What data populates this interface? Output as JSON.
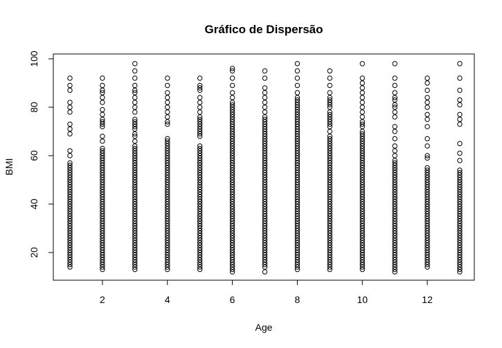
{
  "chart_data": {
    "type": "scatter",
    "title": "Gráfico de Dispersão",
    "xlabel": "Age",
    "ylabel": "BMI",
    "xlim": [
      0.5,
      13.5
    ],
    "ylim": [
      10,
      100
    ],
    "xticks": [
      2,
      4,
      6,
      8,
      10,
      12
    ],
    "yticks": [
      20,
      40,
      60,
      80,
      100
    ],
    "grid": false,
    "marker": "open-circle",
    "marker_color": "#000000",
    "series": [
      {
        "values_by_x": [
          {
            "x": 1,
            "y": [
              14,
              15,
              16,
              17,
              18,
              19,
              20,
              21,
              22,
              23,
              24,
              25,
              26,
              27,
              28,
              29,
              30,
              31,
              32,
              33,
              34,
              35,
              36,
              37,
              38,
              39,
              40,
              41,
              42,
              43,
              44,
              45,
              46,
              47,
              48,
              49,
              50,
              51,
              52,
              53,
              54,
              55,
              56,
              57,
              60,
              62,
              69,
              71,
              73,
              78,
              80,
              82,
              87,
              89,
              92
            ]
          },
          {
            "x": 2,
            "y": [
              13,
              14,
              15,
              16,
              17,
              18,
              19,
              20,
              21,
              22,
              23,
              24,
              25,
              26,
              27,
              28,
              29,
              30,
              31,
              32,
              33,
              34,
              35,
              36,
              37,
              38,
              39,
              40,
              41,
              42,
              43,
              44,
              45,
              46,
              47,
              48,
              49,
              50,
              51,
              52,
              53,
              54,
              55,
              56,
              57,
              58,
              59,
              60,
              61,
              62,
              63,
              66,
              68,
              72,
              73,
              74,
              75,
              77,
              79,
              82,
              84,
              86,
              87,
              89,
              92
            ]
          },
          {
            "x": 3,
            "y": [
              13,
              14,
              15,
              16,
              17,
              18,
              19,
              20,
              21,
              22,
              23,
              24,
              25,
              26,
              27,
              28,
              29,
              30,
              31,
              32,
              33,
              34,
              35,
              36,
              37,
              38,
              39,
              40,
              41,
              42,
              43,
              44,
              45,
              46,
              47,
              48,
              49,
              50,
              51,
              52,
              53,
              54,
              55,
              56,
              57,
              58,
              59,
              60,
              61,
              62,
              63,
              64,
              66,
              68,
              69,
              71,
              72,
              73,
              74,
              75,
              78,
              80,
              82,
              84,
              86,
              87,
              89,
              92,
              95,
              98
            ]
          },
          {
            "x": 4,
            "y": [
              13,
              14,
              15,
              16,
              17,
              18,
              19,
              20,
              21,
              22,
              23,
              24,
              25,
              26,
              27,
              28,
              29,
              30,
              31,
              32,
              33,
              34,
              35,
              36,
              37,
              38,
              39,
              40,
              41,
              42,
              43,
              44,
              45,
              46,
              47,
              48,
              49,
              50,
              51,
              52,
              53,
              54,
              55,
              56,
              57,
              58,
              59,
              60,
              61,
              62,
              63,
              64,
              65,
              66,
              67,
              73,
              74,
              76,
              78,
              80,
              82,
              84,
              86,
              89,
              92
            ]
          },
          {
            "x": 5,
            "y": [
              13,
              14,
              15,
              16,
              17,
              18,
              19,
              20,
              21,
              22,
              23,
              24,
              25,
              26,
              27,
              28,
              29,
              30,
              31,
              32,
              33,
              34,
              35,
              36,
              37,
              38,
              39,
              40,
              41,
              42,
              43,
              44,
              45,
              46,
              47,
              48,
              49,
              50,
              51,
              52,
              53,
              54,
              55,
              56,
              57,
              58,
              59,
              60,
              61,
              62,
              63,
              64,
              68,
              69,
              70,
              71,
              72,
              73,
              74,
              75,
              76,
              78,
              80,
              82,
              84,
              87,
              88,
              89,
              92
            ]
          },
          {
            "x": 6,
            "y": [
              12,
              13,
              14,
              15,
              16,
              17,
              18,
              19,
              20,
              21,
              22,
              23,
              24,
              25,
              26,
              27,
              28,
              29,
              30,
              31,
              32,
              33,
              34,
              35,
              36,
              37,
              38,
              39,
              40,
              41,
              42,
              43,
              44,
              45,
              46,
              47,
              48,
              49,
              50,
              51,
              52,
              53,
              54,
              55,
              56,
              57,
              58,
              59,
              60,
              61,
              62,
              63,
              64,
              65,
              66,
              67,
              68,
              69,
              70,
              71,
              72,
              73,
              74,
              75,
              76,
              77,
              78,
              79,
              80,
              81,
              82,
              84,
              86,
              89,
              92,
              95,
              96
            ]
          },
          {
            "x": 7,
            "y": [
              12,
              14,
              15,
              16,
              17,
              18,
              19,
              20,
              21,
              22,
              23,
              24,
              25,
              26,
              27,
              28,
              29,
              30,
              31,
              32,
              33,
              34,
              35,
              36,
              37,
              38,
              39,
              40,
              41,
              42,
              43,
              44,
              45,
              46,
              47,
              48,
              49,
              50,
              51,
              52,
              53,
              54,
              55,
              56,
              57,
              58,
              59,
              60,
              61,
              62,
              63,
              64,
              65,
              66,
              67,
              68,
              69,
              70,
              71,
              72,
              73,
              74,
              75,
              76,
              78,
              80,
              82,
              84,
              86,
              88,
              92,
              95
            ]
          },
          {
            "x": 8,
            "y": [
              13,
              14,
              15,
              16,
              17,
              18,
              19,
              20,
              21,
              22,
              23,
              24,
              25,
              26,
              27,
              28,
              29,
              30,
              31,
              32,
              33,
              34,
              35,
              36,
              37,
              38,
              39,
              40,
              41,
              42,
              43,
              44,
              45,
              46,
              47,
              48,
              49,
              50,
              51,
              52,
              53,
              54,
              55,
              56,
              57,
              58,
              59,
              60,
              61,
              62,
              63,
              64,
              65,
              66,
              67,
              68,
              69,
              70,
              71,
              72,
              73,
              74,
              75,
              76,
              77,
              78,
              79,
              80,
              81,
              82,
              83,
              84,
              86,
              89,
              92,
              95,
              98
            ]
          },
          {
            "x": 9,
            "y": [
              13,
              14,
              15,
              16,
              17,
              18,
              19,
              20,
              21,
              22,
              23,
              24,
              25,
              26,
              27,
              28,
              29,
              30,
              31,
              32,
              33,
              34,
              35,
              36,
              37,
              38,
              39,
              40,
              41,
              42,
              43,
              44,
              45,
              46,
              47,
              48,
              49,
              50,
              51,
              52,
              53,
              54,
              55,
              56,
              57,
              58,
              59,
              60,
              61,
              62,
              63,
              64,
              65,
              66,
              67,
              68,
              70,
              72,
              73,
              74,
              75,
              76,
              77,
              78,
              80,
              81,
              82,
              83,
              84,
              86,
              89,
              92,
              95
            ]
          },
          {
            "x": 10,
            "y": [
              13,
              14,
              15,
              16,
              17,
              18,
              19,
              20,
              21,
              22,
              23,
              24,
              25,
              26,
              27,
              28,
              29,
              30,
              31,
              32,
              33,
              34,
              35,
              36,
              37,
              38,
              39,
              40,
              41,
              42,
              43,
              44,
              45,
              46,
              47,
              48,
              49,
              50,
              51,
              52,
              53,
              54,
              55,
              56,
              57,
              58,
              59,
              60,
              61,
              62,
              63,
              64,
              65,
              66,
              67,
              68,
              69,
              70,
              72,
              73,
              74,
              76,
              78,
              80,
              82,
              84,
              86,
              88,
              90,
              92,
              98
            ]
          },
          {
            "x": 11,
            "y": [
              12,
              13,
              14,
              15,
              16,
              17,
              18,
              19,
              20,
              21,
              22,
              23,
              24,
              25,
              26,
              27,
              28,
              29,
              30,
              31,
              32,
              33,
              34,
              35,
              36,
              37,
              38,
              39,
              40,
              41,
              42,
              43,
              44,
              45,
              46,
              47,
              48,
              49,
              50,
              51,
              52,
              53,
              54,
              55,
              56,
              57,
              58,
              60,
              62,
              64,
              67,
              70,
              72,
              76,
              78,
              80,
              81,
              83,
              84,
              86,
              89,
              92,
              98
            ]
          },
          {
            "x": 12,
            "y": [
              14,
              15,
              16,
              17,
              18,
              19,
              20,
              21,
              22,
              23,
              24,
              25,
              26,
              27,
              28,
              29,
              30,
              31,
              32,
              33,
              34,
              35,
              36,
              37,
              38,
              39,
              40,
              41,
              42,
              43,
              44,
              45,
              46,
              47,
              48,
              49,
              50,
              51,
              52,
              53,
              54,
              55,
              59,
              60,
              64,
              67,
              72,
              75,
              77,
              80,
              82,
              84,
              87,
              90,
              92
            ]
          },
          {
            "x": 13,
            "y": [
              12,
              13,
              14,
              15,
              16,
              17,
              18,
              19,
              20,
              21,
              22,
              23,
              24,
              25,
              26,
              27,
              28,
              29,
              30,
              31,
              32,
              33,
              34,
              35,
              36,
              37,
              38,
              39,
              40,
              41,
              42,
              43,
              44,
              45,
              46,
              47,
              48,
              49,
              50,
              51,
              52,
              53,
              54,
              58,
              61,
              65,
              73,
              75,
              77,
              81,
              83,
              87,
              92,
              98
            ]
          }
        ]
      }
    ]
  }
}
